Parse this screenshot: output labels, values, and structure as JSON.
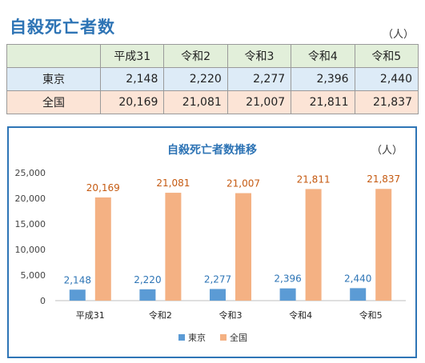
{
  "page": {
    "title": "自殺死亡者数",
    "unit": "（人）"
  },
  "table": {
    "header": [
      "",
      "平成31",
      "令和2",
      "令和3",
      "令和4",
      "令和5"
    ],
    "rows": [
      {
        "label": "東京",
        "values": [
          "2,148",
          "2,220",
          "2,277",
          "2,396",
          "2,440"
        ]
      },
      {
        "label": "全国",
        "values": [
          "20,169",
          "21,081",
          "21,007",
          "21,811",
          "21,837"
        ]
      }
    ]
  },
  "colors": {
    "accent": "#2e74b5",
    "tokyo": "#5b9bd5",
    "national": "#f4b183",
    "national_label": "#c55a11",
    "tokyo_label": "#2e75b6"
  },
  "chart_data": {
    "type": "bar",
    "title": "自殺死亡者数推移",
    "unit": "（人）",
    "categories": [
      "平成31",
      "令和2",
      "令和3",
      "令和4",
      "令和5"
    ],
    "series": [
      {
        "name": "東京",
        "values": [
          2148,
          2220,
          2277,
          2396,
          2440
        ],
        "labels": [
          "2,148",
          "2,220",
          "2,277",
          "2,396",
          "2,440"
        ]
      },
      {
        "name": "全国",
        "values": [
          20169,
          21081,
          21007,
          21811,
          21837
        ],
        "labels": [
          "20,169",
          "21,081",
          "21,007",
          "21,811",
          "21,837"
        ]
      }
    ],
    "ylim": [
      0,
      25000
    ],
    "yticks": [
      0,
      5000,
      10000,
      15000,
      20000,
      25000
    ],
    "ytick_labels": [
      "0",
      "5,000",
      "10,000",
      "15,000",
      "20,000",
      "25,000"
    ],
    "grid": false,
    "legend": "bottom"
  }
}
